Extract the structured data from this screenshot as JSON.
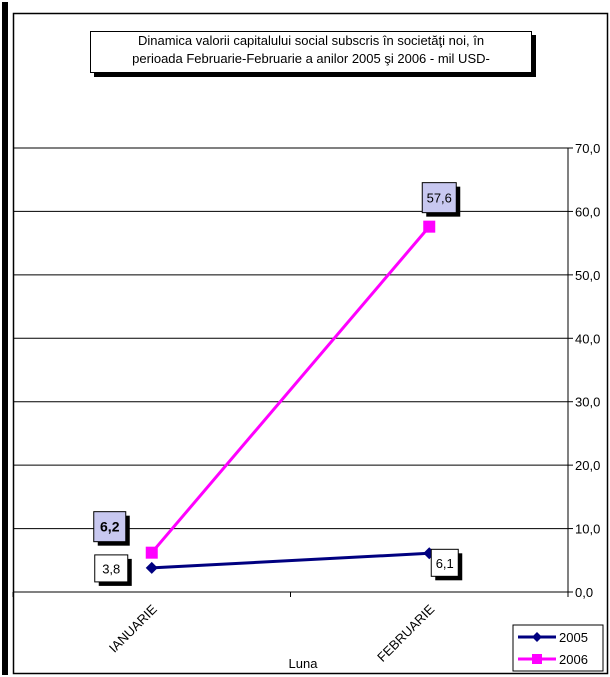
{
  "chart_data": {
    "type": "line",
    "title": "Dinamica  valorii capitalului social subscris în societăţi noi,  în perioada Februarie-Februarie a anilor 2005 şi 2006  - mil  USD-",
    "title_lines": [
      "Dinamica  valorii capitalului social subscris în societăţi noi,  în",
      "perioada Februarie-Februarie a anilor 2005 şi 2006  - mil  USD-"
    ],
    "xlabel": "Luna",
    "ylabel": "",
    "categories": [
      "IANUARIE",
      "FEBRUARIE"
    ],
    "ylim": [
      0,
      70
    ],
    "y_ticks": [
      "0,0",
      "10,0",
      "20,0",
      "30,0",
      "40,0",
      "50,0",
      "60,0",
      "70,0"
    ],
    "y_axis_side": "right",
    "grid": true,
    "legend_position": "bottom-right",
    "series": [
      {
        "name": "2005",
        "values": [
          3.8,
          6.1
        ],
        "labels": [
          "3,8",
          "6,1"
        ],
        "color": "#000080",
        "marker": "diamond"
      },
      {
        "name": "2006",
        "values": [
          6.2,
          57.6
        ],
        "labels": [
          "6,2",
          "57,6"
        ],
        "color": "#ff00ff",
        "marker": "square"
      }
    ]
  }
}
